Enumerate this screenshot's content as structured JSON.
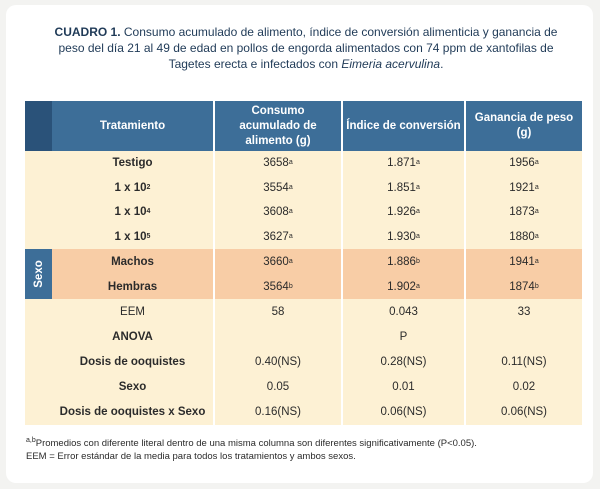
{
  "caption": {
    "label": "CUADRO 1.",
    "text_a": " Consumo acumulado de alimento, índice de conversión alimenticia y ganancia de peso  del día 21 al  49 de edad en pollos de engorda alimentados con 74 ppm de xantofilas de Tagetes erecta e infectados con ",
    "species": "Eimeria acervulina",
    "text_b": "."
  },
  "header": {
    "tratamiento": "Tratamiento",
    "consumo": "Consumo acumulado de alimento (g)",
    "indice": "Índice de conversión",
    "ganancia": "Ganancia de peso (g)"
  },
  "side_label": "Sexo",
  "treatments": [
    {
      "base": "Testigo",
      "exp": "",
      "consumo": "3658",
      "consumo_sup": "a",
      "indice": "1.871",
      "indice_sup": "a",
      "ganancia": "1956",
      "ganancia_sup": "a"
    },
    {
      "base": "1 x 10",
      "exp": "2",
      "consumo": "3554",
      "consumo_sup": "a",
      "indice": "1.851",
      "indice_sup": "a",
      "ganancia": "1921",
      "ganancia_sup": "a"
    },
    {
      "base": "1 x 10",
      "exp": "4",
      "consumo": "3608",
      "consumo_sup": "a",
      "indice": "1.926",
      "indice_sup": "a",
      "ganancia": "1873",
      "ganancia_sup": "a"
    },
    {
      "base": "1 x 10",
      "exp": "5",
      "consumo": "3627",
      "consumo_sup": "a",
      "indice": "1.930",
      "indice_sup": "a",
      "ganancia": "1880",
      "ganancia_sup": "a"
    }
  ],
  "sexes": [
    {
      "label": "Machos",
      "consumo": "3660",
      "consumo_sup": "a",
      "indice": "1.886",
      "indice_sup": "b",
      "ganancia": "1941",
      "ganancia_sup": "a"
    },
    {
      "label": "Hembras",
      "consumo": "3564",
      "consumo_sup": "b",
      "indice": "1.902",
      "indice_sup": "a",
      "ganancia": "1874",
      "ganancia_sup": "b"
    }
  ],
  "stats": [
    {
      "label": "EEM",
      "bold": false,
      "consumo": "58",
      "indice": "0.043",
      "ganancia": "33"
    },
    {
      "label": "ANOVA",
      "bold": true,
      "consumo": "",
      "indice": "P",
      "ganancia": ""
    },
    {
      "label": "Dosis de ooquistes",
      "bold": true,
      "consumo": "0.40(NS)",
      "indice": "0.28(NS)",
      "ganancia": "0.11(NS)"
    },
    {
      "label": "Sexo",
      "bold": true,
      "consumo": "0.05",
      "indice": "0.01",
      "ganancia": "0.02"
    },
    {
      "label": "Dosis de ooquistes x Sexo",
      "bold": true,
      "consumo": "0.16(NS)",
      "indice": "0.06(NS)",
      "ganancia": "0.06(NS)"
    }
  ],
  "footnotes": {
    "line1_sup": "a,b",
    "line1": "Promedios con diferente literal dentro de una misma columna son diferentes significativamente (P<0.05).",
    "line2": "EEM = Error estándar de la media para todos los tratamientos y ambos sexos."
  },
  "colors": {
    "header_bg": "#3d6e98",
    "header_dark": "#2a5279",
    "cream": "#fdf1d4",
    "orange": "#f8cda6"
  }
}
